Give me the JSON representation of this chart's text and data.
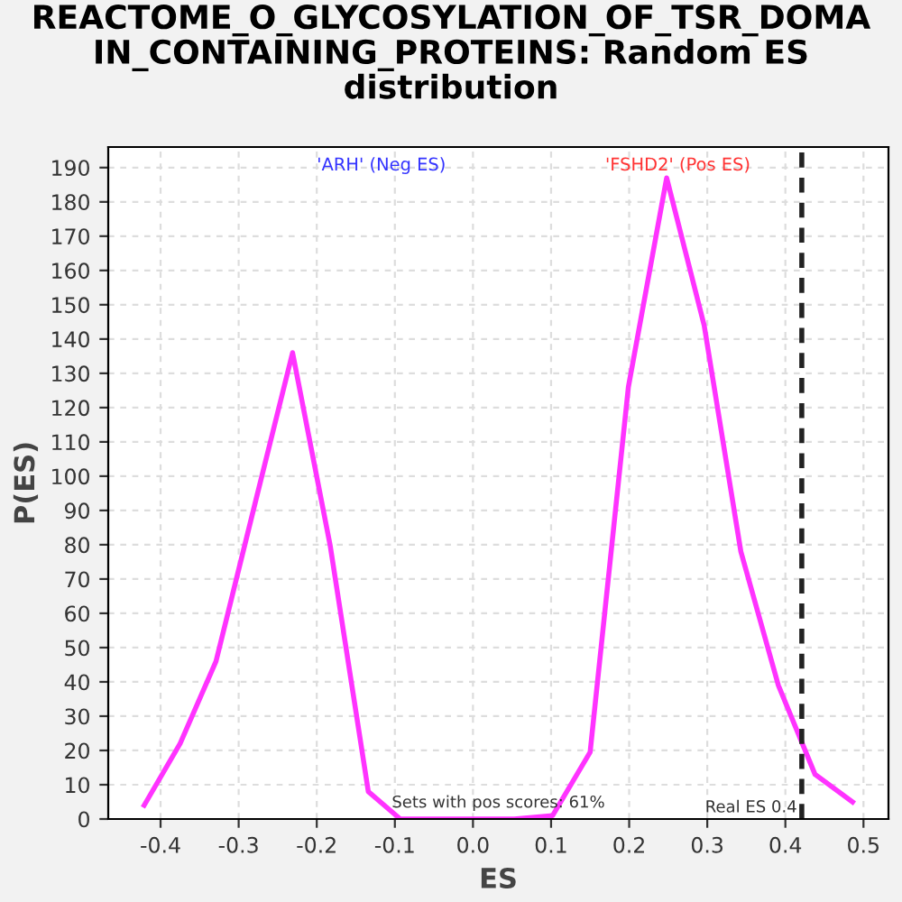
{
  "chart_data": {
    "type": "line",
    "title": "REACTOME_O_GLYCOSYLATION_OF_TSR_DOMA\nIN_CONTAINING_PROTEINS: Random ES\ndistribution",
    "xlabel": "ES",
    "ylabel": "P(ES)",
    "x": [
      -0.421,
      -0.375,
      -0.329,
      -0.278,
      -0.231,
      -0.183,
      -0.134,
      -0.093,
      -0.044,
      0.005,
      0.053,
      0.102,
      0.15,
      0.199,
      0.248,
      0.296,
      0.343,
      0.391,
      0.438,
      0.486
    ],
    "series": [
      {
        "color": "#ff33ff",
        "values": [
          4,
          22,
          46,
          93,
          136,
          80,
          8,
          0,
          0,
          0,
          0,
          1,
          19.5,
          126,
          187,
          144,
          78,
          39,
          13,
          5
        ]
      }
    ],
    "xlim": [
      -0.467,
      0.532
    ],
    "ylim": [
      0,
      196
    ],
    "xticks": [
      -0.4,
      -0.3,
      -0.2,
      -0.1,
      {
        "value": 0,
        "label": "0.0"
      },
      0.1,
      0.2,
      0.3,
      0.4,
      0.5
    ],
    "yticks": [
      0,
      10,
      20,
      30,
      40,
      50,
      60,
      70,
      80,
      90,
      100,
      110,
      120,
      130,
      140,
      150,
      160,
      170,
      180,
      190
    ],
    "ref_lines": [
      {
        "axis": "x",
        "value": 0.421,
        "label": "Real ES 0.4",
        "color": "#222222",
        "line_style": "dashed"
      }
    ],
    "annotations": [
      "'ARH' (Neg ES)",
      "'FSHD2' (Pos ES)",
      "Sets with pos scores: 61%"
    ],
    "grid": true,
    "legend": false,
    "marker": "none",
    "line_style": "solid"
  }
}
